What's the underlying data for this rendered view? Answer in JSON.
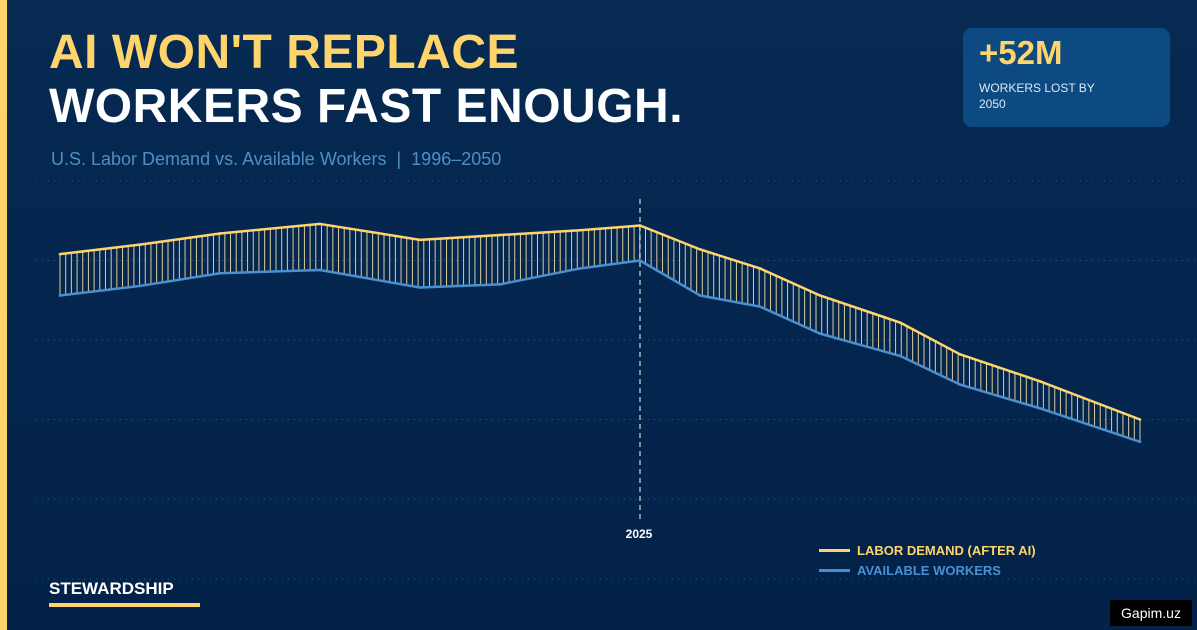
{
  "header": {
    "title_line1": "AI WON'T REPLACE",
    "title_line2": "WORKERS FAST ENOUGH.",
    "subtitle": "U.S. Labor Demand vs. Available Workers  |  1996–2050"
  },
  "stat": {
    "value": "+52M",
    "label": "WORKERS LOST BY 2050"
  },
  "brand": {
    "label": "STEWARDSHIP"
  },
  "watermark": {
    "text": "Gapim.uz"
  },
  "colors": {
    "background": "#04264b",
    "accent": "#ffd56b",
    "workers": "#4a90d0",
    "card": "#0e4a82"
  },
  "chart_data": {
    "type": "area",
    "x_range": [
      1996,
      2050
    ],
    "y_range": [
      0,
      100
    ],
    "grid": true,
    "marker": {
      "x": 2025,
      "label": "2025"
    },
    "legend_position": "bottom-right",
    "gap_fill": "vertical hatch lines between series",
    "series": [
      {
        "name": "LABOR DEMAND (AFTER AI)",
        "color": "#ffd56b",
        "points": [
          [
            1996,
            77
          ],
          [
            2000,
            80
          ],
          [
            2004,
            83.5
          ],
          [
            2009,
            86.5
          ],
          [
            2014,
            81.5
          ],
          [
            2018,
            83
          ],
          [
            2022,
            84.5
          ],
          [
            2025,
            86
          ],
          [
            2028,
            78.5
          ],
          [
            2031,
            72.5
          ],
          [
            2034,
            64
          ],
          [
            2038,
            55.5
          ],
          [
            2041,
            45.5
          ],
          [
            2045,
            37
          ],
          [
            2050,
            25
          ]
        ]
      },
      {
        "name": "AVAILABLE WORKERS",
        "color": "#4a90d0",
        "points": [
          [
            1996,
            64
          ],
          [
            2000,
            67
          ],
          [
            2004,
            71
          ],
          [
            2009,
            72
          ],
          [
            2014,
            66.5
          ],
          [
            2018,
            67.5
          ],
          [
            2022,
            72.5
          ],
          [
            2025,
            75
          ],
          [
            2028,
            64
          ],
          [
            2031,
            60.5
          ],
          [
            2034,
            52
          ],
          [
            2038,
            45
          ],
          [
            2041,
            36
          ],
          [
            2045,
            28.5
          ],
          [
            2050,
            18
          ]
        ]
      }
    ]
  }
}
